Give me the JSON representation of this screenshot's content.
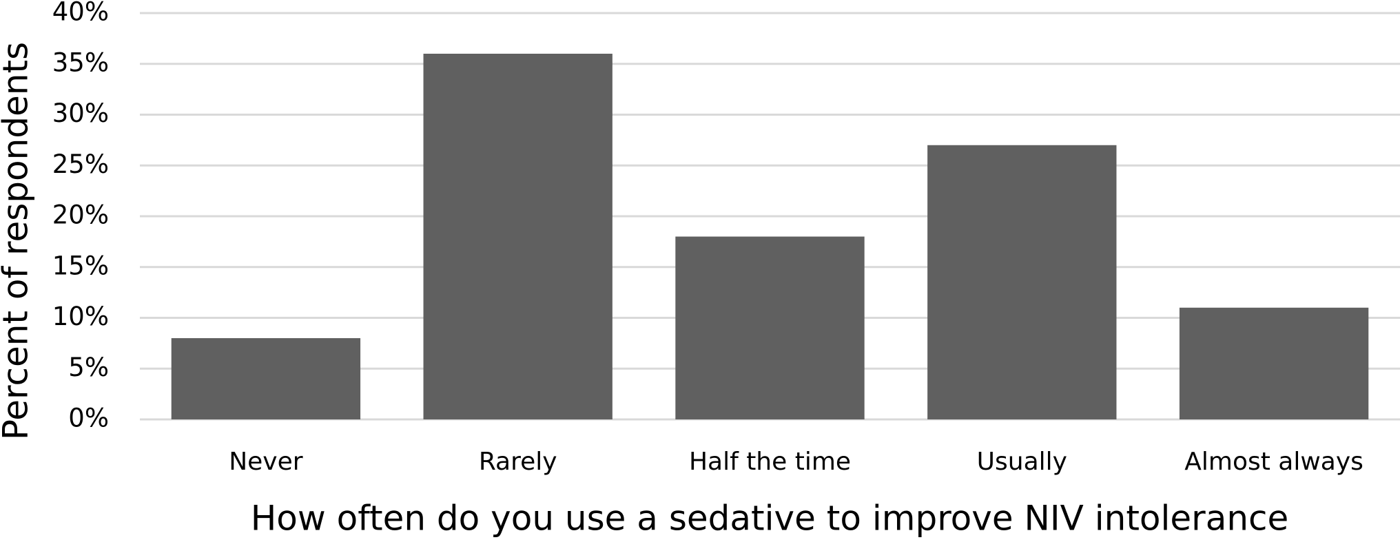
{
  "chart_data": {
    "type": "bar",
    "x_label": "How often do you use a sedative to improve NIV intolerance",
    "y_label": "Percent  of  respondents",
    "categories": [
      "Never",
      "Rarely",
      "Half the time",
      "Usually",
      "Almost always"
    ],
    "values": [
      8,
      36,
      18,
      27,
      11
    ],
    "color": "#606060",
    "ylim": [
      0,
      40
    ],
    "yticks": [
      {
        "value": 0,
        "label": "0%"
      },
      {
        "value": 5,
        "label": "5%"
      },
      {
        "value": 10,
        "label": "10%"
      },
      {
        "value": 15,
        "label": "15%"
      },
      {
        "value": 20,
        "label": "20%"
      },
      {
        "value": 25,
        "label": "25%"
      },
      {
        "value": 30,
        "label": "30%"
      },
      {
        "value": 35,
        "label": "35%"
      },
      {
        "value": 40,
        "label": "40%"
      }
    ],
    "grid": true
  }
}
